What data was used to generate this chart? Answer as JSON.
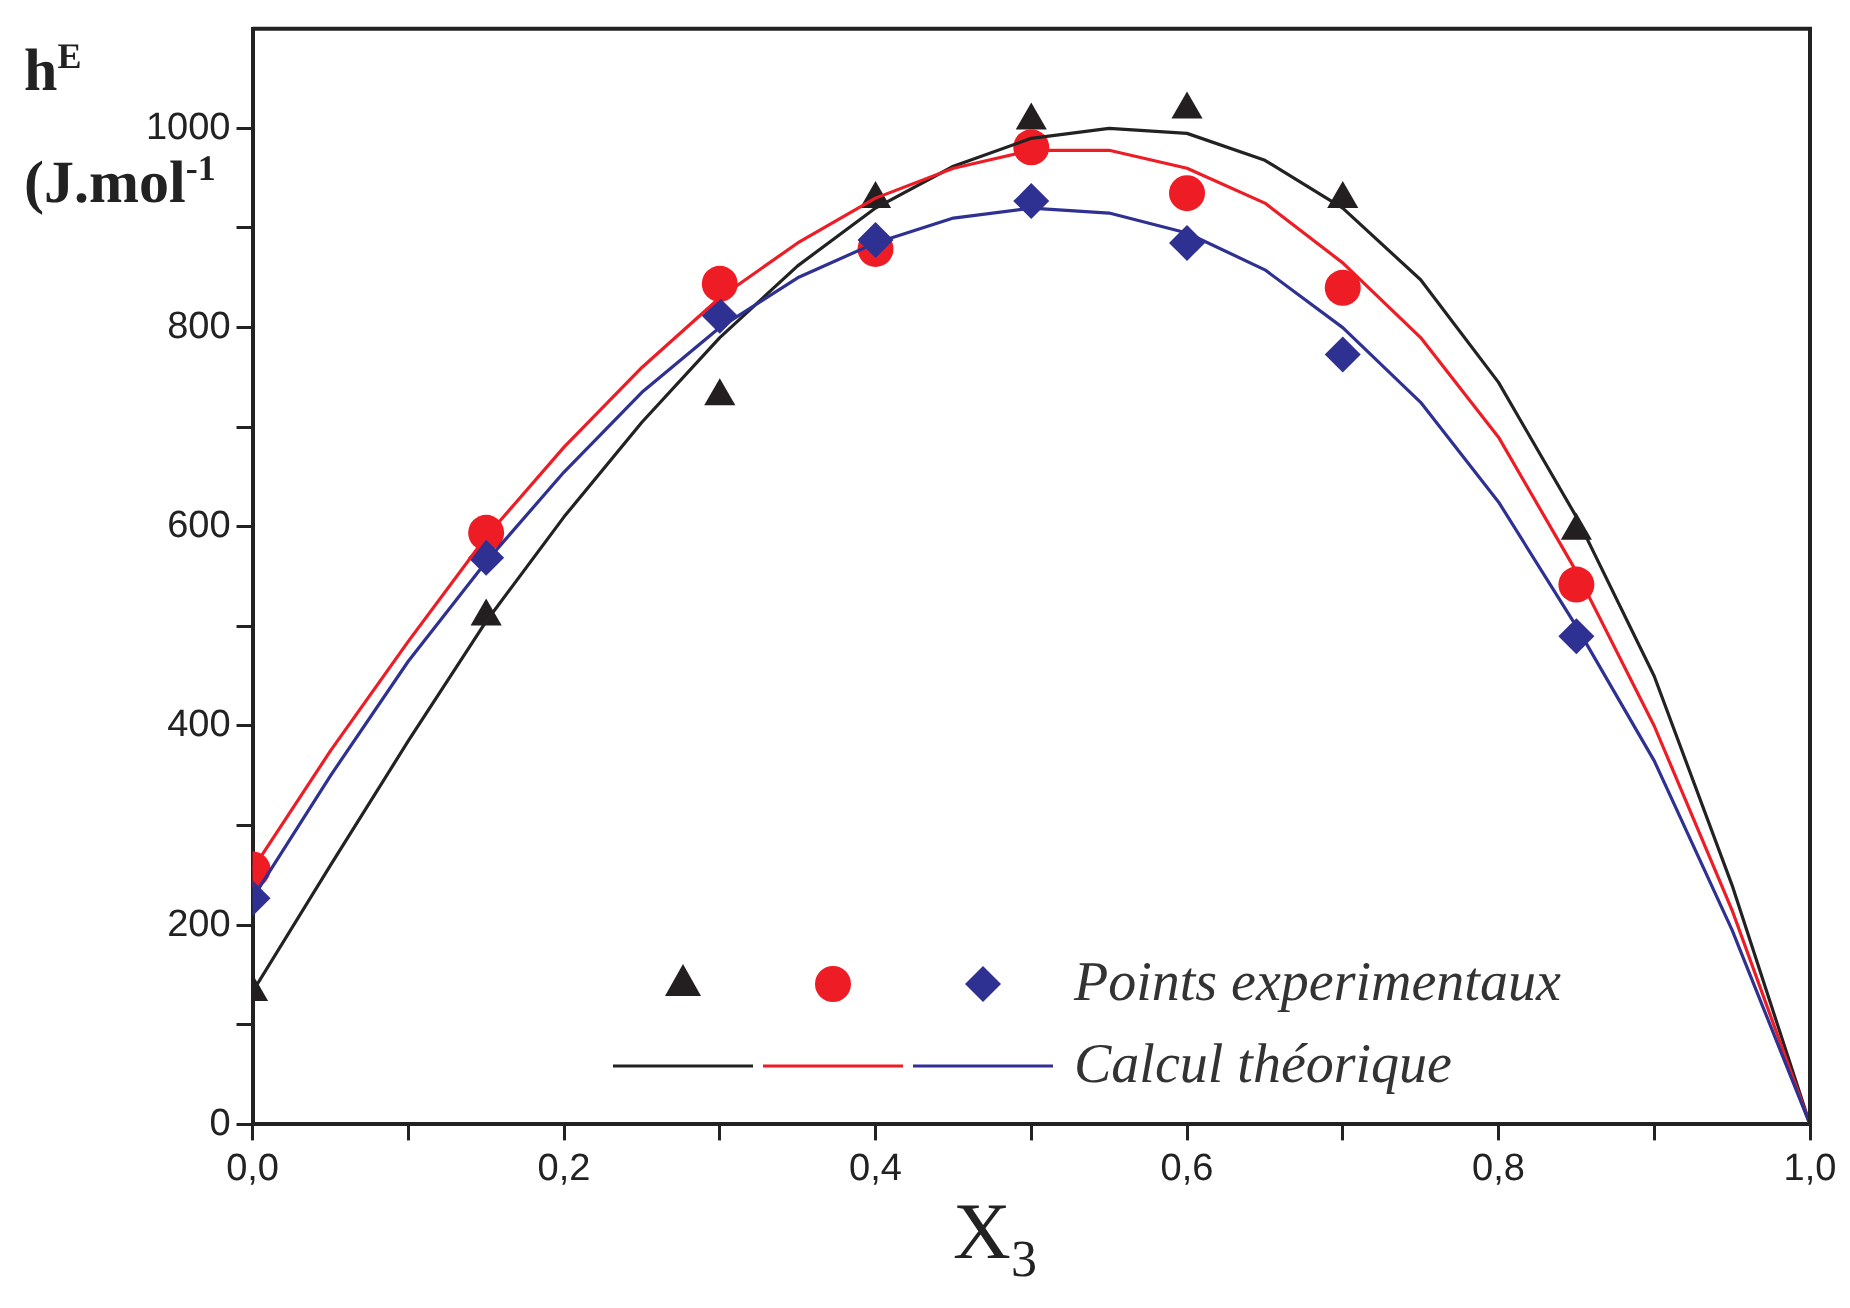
{
  "chart_data": {
    "type": "scatter",
    "xlabel": "X$_{3}$",
    "ylabel": "h$^{E}$\n(J.mol$^{-1}$",
    "legend": "bottom right",
    "grid": false,
    "xlim": [
      0,
      1
    ],
    "xticks": [
      {
        "value": 0,
        "label": "0,0"
      },
      {
        "value": 0.1,
        "label": null
      },
      {
        "value": 0.2,
        "label": "0,2"
      },
      {
        "value": 0.3,
        "label": null
      },
      {
        "value": 0.4,
        "label": "0,4"
      },
      {
        "value": 0.5,
        "label": null
      },
      {
        "value": 0.6,
        "label": "0,6"
      },
      {
        "value": 0.7,
        "label": null
      },
      {
        "value": 0.8,
        "label": "0,8"
      },
      {
        "value": 0.9,
        "label": null
      },
      {
        "value": 1,
        "label": "1,0"
      }
    ],
    "ylim": [
      0,
      1100
    ],
    "yticks": [
      0,
      {
        "value": 100,
        "label": null
      },
      200,
      {
        "value": 300,
        "label": null
      },
      400,
      {
        "value": 500,
        "label": null
      },
      600,
      {
        "value": 700,
        "label": null
      },
      800,
      {
        "value": 900,
        "label": null
      },
      1000
    ],
    "series": [
      {
        "type": "line",
        "marker": "none",
        "color": "#222222",
        "x": [
          0,
          0.05,
          0.1,
          0.15,
          0.2,
          0.25,
          0.3,
          0.35,
          0.4,
          0.45,
          0.5,
          0.55,
          0.6,
          0.65,
          0.7,
          0.75,
          0.8,
          0.85,
          0.9,
          0.95,
          1
        ],
        "values": [
          133,
          260,
          385,
          505,
          610,
          705,
          790,
          862,
          920,
          962,
          990,
          1000,
          995,
          968,
          920,
          848,
          745,
          610,
          450,
          240,
          0
        ]
      },
      {
        "type": "line",
        "marker": "none",
        "color": "#ee1c25",
        "x": [
          0,
          0.05,
          0.1,
          0.15,
          0.2,
          0.25,
          0.3,
          0.35,
          0.4,
          0.45,
          0.5,
          0.55,
          0.6,
          0.65,
          0.7,
          0.75,
          0.8,
          0.85,
          0.9,
          0.95,
          1
        ],
        "values": [
          256,
          375,
          485,
          590,
          680,
          760,
          830,
          885,
          930,
          960,
          978,
          978,
          960,
          925,
          865,
          790,
          690,
          555,
          400,
          215,
          0
        ]
      },
      {
        "type": "line",
        "marker": "none",
        "color": "#2e3192",
        "name": "Calcul théorique",
        "x": [
          0,
          0.05,
          0.1,
          0.15,
          0.2,
          0.25,
          0.3,
          0.35,
          0.4,
          0.45,
          0.5,
          0.55,
          0.6,
          0.65,
          0.7,
          0.75,
          0.8,
          0.85,
          0.9,
          0.95,
          1
        ],
        "values": [
          227,
          350,
          465,
          565,
          655,
          735,
          800,
          850,
          885,
          910,
          920,
          915,
          895,
          858,
          800,
          725,
          625,
          500,
          365,
          195,
          0
        ]
      },
      {
        "type": "scatter",
        "marker": "triangle",
        "color": "#231f20",
        "x": [
          0,
          0.15,
          0.3,
          0.4,
          0.5,
          0.6,
          0.7,
          0.85
        ],
        "values": [
          133,
          510,
          731,
          929,
          1008,
          1019,
          929,
          596
        ]
      },
      {
        "type": "scatter",
        "marker": "circle",
        "color": "#ee1c25",
        "x": [
          0,
          0.15,
          0.3,
          0.4,
          0.5,
          0.6,
          0.7,
          0.85
        ],
        "values": [
          256,
          594,
          844,
          879,
          981,
          935,
          840,
          542
        ]
      },
      {
        "type": "scatter",
        "marker": "diamond",
        "color": "#2e3192",
        "name": "Points experimentaux",
        "x": [
          0,
          0.15,
          0.3,
          0.4,
          0.5,
          0.6,
          0.7,
          0.85
        ],
        "values": [
          227,
          569,
          812,
          888,
          927,
          885,
          773,
          490
        ]
      }
    ]
  }
}
